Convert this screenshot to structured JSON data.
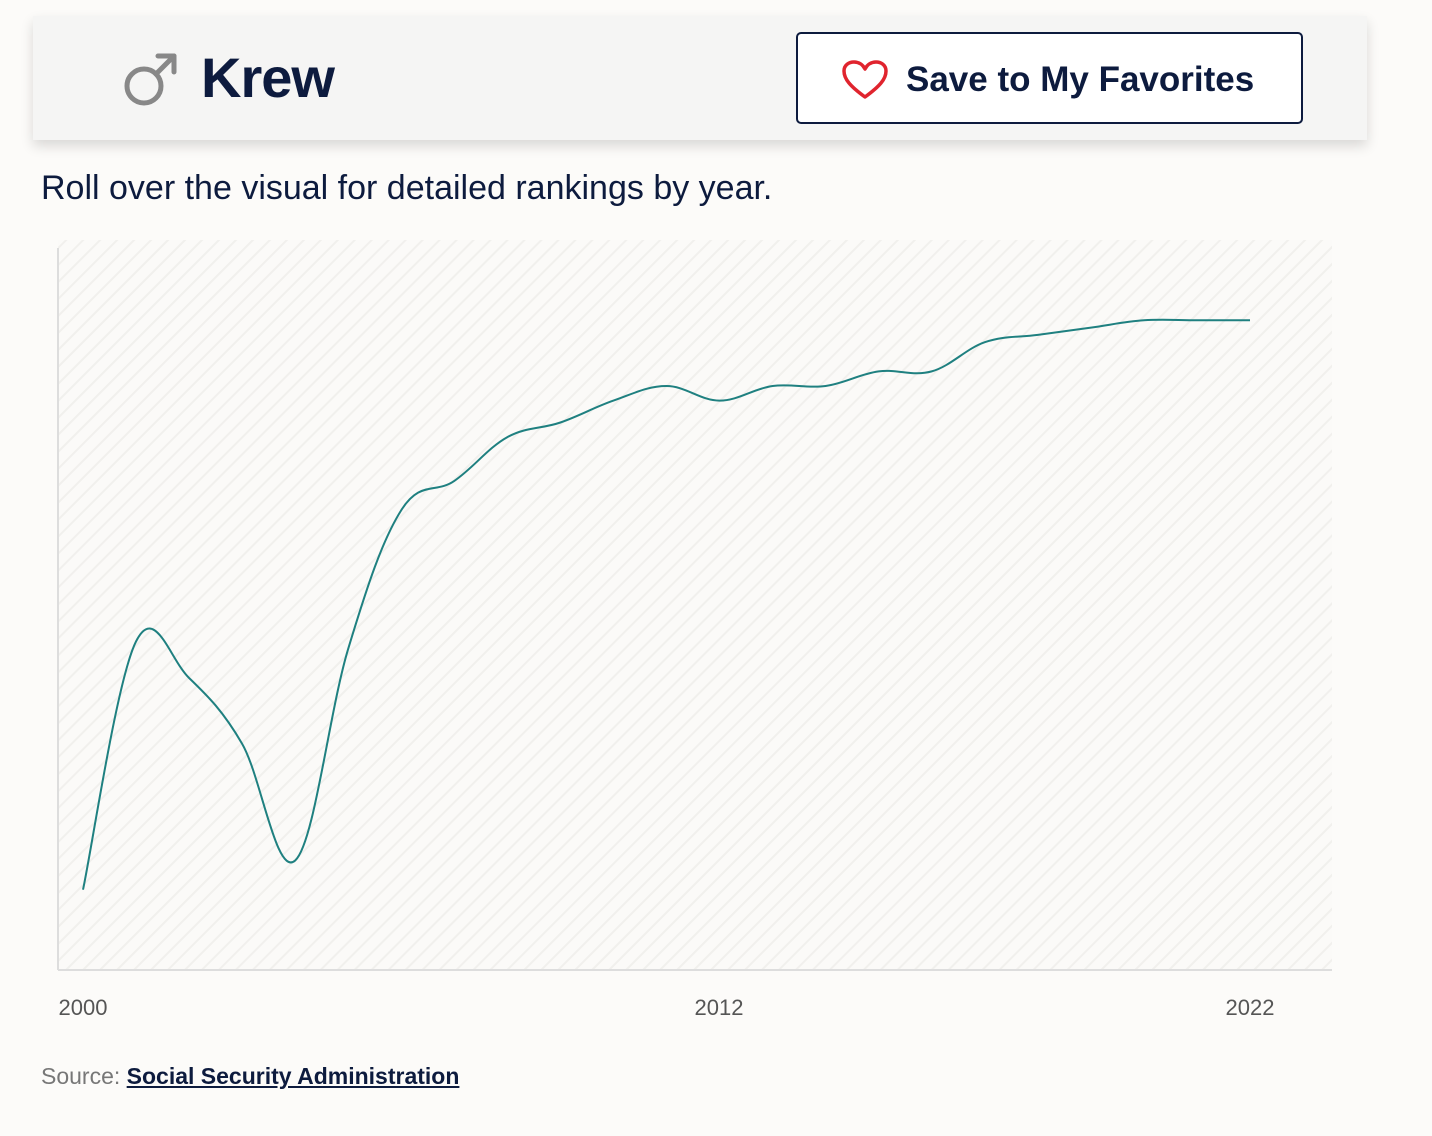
{
  "header": {
    "gender_icon": "male-symbol-icon",
    "name": "Krew",
    "favorite_icon": "heart-outline-icon",
    "favorite_label": "Save to My Favorites"
  },
  "instructions": "Roll over the visual for detailed rankings by year.",
  "colors": {
    "navy": "#0d1b3e",
    "line": "#1f8080",
    "heart": "#e0242e",
    "icon_gray": "#888888"
  },
  "chart_data": {
    "type": "line",
    "title": "",
    "xlabel": "",
    "ylabel": "",
    "x_ticks": [
      "2000",
      "2012",
      "2022"
    ],
    "x": [
      2000,
      2001,
      2002,
      2003,
      2004,
      2005,
      2006,
      2007,
      2008,
      2009,
      2010,
      2011,
      2012,
      2013,
      2014,
      2015,
      2016,
      2017,
      2018,
      2019,
      2020,
      2021,
      2022
    ],
    "series": [
      {
        "values": [
          0.11,
          0.45,
          0.4,
          0.31,
          0.15,
          0.44,
          0.63,
          0.67,
          0.73,
          0.75,
          0.78,
          0.8,
          0.78,
          0.8,
          0.8,
          0.82,
          0.82,
          0.86,
          0.87,
          0.88,
          0.89,
          0.89,
          0.89
        ]
      }
    ],
    "ylim": [
      0,
      1
    ],
    "xlim": [
      1999.5,
      2023.5
    ],
    "y_axis_labels_shown": false,
    "background_pattern": "diagonal-hatch"
  },
  "source": {
    "prefix": "Source: ",
    "link_text": "Social Security Administration"
  }
}
